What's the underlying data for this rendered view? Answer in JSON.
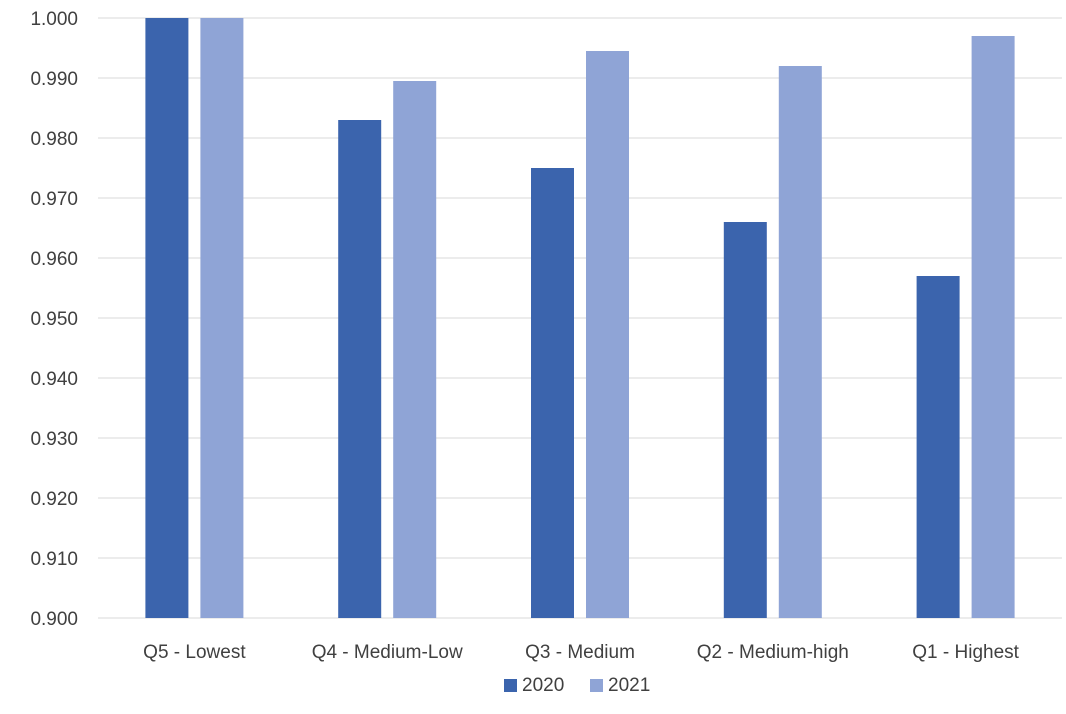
{
  "chart_data": {
    "type": "bar",
    "title": "",
    "xlabel": "",
    "ylabel": "",
    "categories": [
      "Q5 - Lowest",
      "Q4 - Medium-Low",
      "Q3 - Medium",
      "Q2 - Medium-high",
      "Q1 - Highest"
    ],
    "series": [
      {
        "name": "2020",
        "color": "#3b64ad",
        "values": [
          1.0,
          0.983,
          0.975,
          0.966,
          0.957
        ]
      },
      {
        "name": "2021",
        "color": "#8fa4d6",
        "values": [
          1.0,
          0.9895,
          0.9945,
          0.992,
          0.997
        ]
      }
    ],
    "ylim": [
      0.9,
      1.0
    ],
    "yticks": [
      "0.900",
      "0.910",
      "0.920",
      "0.930",
      "0.940",
      "0.950",
      "0.960",
      "0.970",
      "0.980",
      "0.990",
      "1.000"
    ],
    "grid": true,
    "legend_position": "bottom-center"
  }
}
